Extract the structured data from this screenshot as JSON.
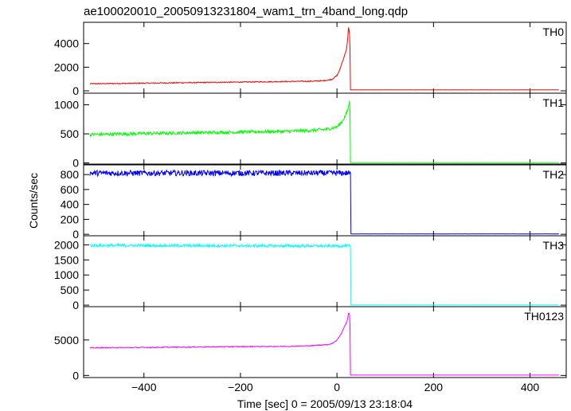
{
  "title": "ae100020010_20050913231804_wam1_trn_4band_long.qdp",
  "chart_data": {
    "type": "line",
    "title": "ae100020010_20050913231804_wam1_trn_4band_long.qdp",
    "xlabel": "Time [sec] 0 = 2005/09/13 23:18:04",
    "ylabel": "Counts/sec",
    "xlim": [
      -525,
      475
    ],
    "x_ticks": [
      -400,
      -200,
      0,
      200,
      400
    ],
    "x_ticklabels": [
      "−400",
      "−200",
      "0",
      "200",
      "400"
    ],
    "series": [
      {
        "name": "TH0",
        "color": "#ff0000",
        "ylim": [
          -200,
          5800
        ],
        "yticks": [
          0,
          2000,
          4000
        ],
        "shape": "flare",
        "x": [
          -512,
          -400,
          -300,
          -200,
          -100,
          -50,
          -30,
          -20,
          -10,
          0,
          5,
          10,
          15,
          18,
          20,
          22,
          24,
          26,
          27,
          28,
          460
        ],
        "y": [
          600,
          650,
          690,
          740,
          790,
          820,
          850,
          900,
          980,
          1300,
          1700,
          2300,
          2900,
          3300,
          3600,
          4300,
          5400,
          4800,
          3500,
          80,
          80
        ],
        "noise": 40
      },
      {
        "name": "TH1",
        "color": "#00ff00",
        "ylim": [
          -20,
          1200
        ],
        "yticks": [
          0,
          500,
          1000
        ],
        "shape": "flare",
        "x": [
          -512,
          -400,
          -300,
          -200,
          -100,
          -50,
          -20,
          0,
          10,
          18,
          22,
          24,
          26,
          27,
          28,
          460
        ],
        "y": [
          490,
          505,
          520,
          530,
          545,
          560,
          580,
          620,
          700,
          820,
          900,
          980,
          1050,
          900,
          5,
          5
        ],
        "noise": 28
      },
      {
        "name": "TH2",
        "color": "#0000ff",
        "ylim": [
          -20,
          930
        ],
        "yticks": [
          0,
          200,
          400,
          600,
          800
        ],
        "shape": "flat",
        "x": [
          -512,
          28,
          28.5,
          460
        ],
        "y": [
          820,
          820,
          5,
          5
        ],
        "noise": 38
      },
      {
        "name": "TH3",
        "color": "#00ffff",
        "ylim": [
          -50,
          2300
        ],
        "yticks": [
          0,
          500,
          1000,
          1500,
          2000
        ],
        "shape": "flat",
        "x": [
          -512,
          28,
          28.5,
          460
        ],
        "y": [
          1980,
          1960,
          5,
          5
        ],
        "noise": 45
      },
      {
        "name": "TH0123",
        "color": "#ff00ff",
        "ylim": [
          -300,
          9700
        ],
        "yticks": [
          0,
          5000
        ],
        "shape": "flare",
        "x": [
          -512,
          -400,
          -300,
          -200,
          -100,
          -50,
          -20,
          -10,
          0,
          10,
          15,
          20,
          22,
          24,
          26,
          27,
          28,
          460
        ],
        "y": [
          3900,
          3950,
          4000,
          4050,
          4100,
          4200,
          4350,
          4500,
          5000,
          6000,
          6800,
          7500,
          8000,
          8800,
          8600,
          7000,
          50,
          50
        ],
        "noise": 60
      }
    ]
  }
}
